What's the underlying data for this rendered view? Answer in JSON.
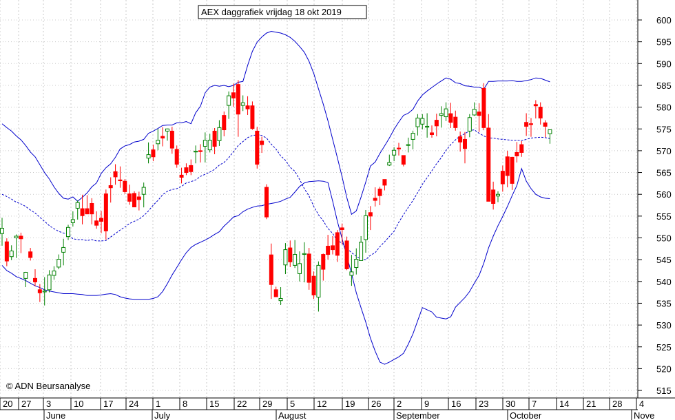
{
  "chart_data": {
    "type": "candlestick",
    "title": "AEX daggrafiek vrijdag 18 okt 2019",
    "watermark": "© ADN Beursanalyse",
    "ylim": [
      513,
      605
    ],
    "yticks": [
      515,
      520,
      525,
      530,
      535,
      540,
      545,
      550,
      555,
      560,
      565,
      570,
      575,
      580,
      585,
      590,
      595,
      600
    ],
    "x_day_labels": [
      "20",
      "27",
      "3",
      "10",
      "17",
      "24",
      "1",
      "8",
      "15",
      "22",
      "29",
      "5",
      "12",
      "19",
      "26",
      "2",
      "9",
      "16",
      "23",
      "30",
      "7",
      "14",
      "21",
      "28",
      "4"
    ],
    "x_month_labels": [
      "June",
      "July",
      "August",
      "September",
      "October",
      "Nove"
    ],
    "grid": true,
    "colors": {
      "up": "#008000",
      "down": "#ff0000",
      "band": "#0000cc",
      "frame": "#000000"
    },
    "candles": [
      [
        551.0,
        554.6,
        548.2,
        552.2
      ],
      [
        549.1,
        549.9,
        543.5,
        544.7
      ],
      [
        545.7,
        548.3,
        544.9,
        547.0
      ],
      [
        550.0,
        550.8,
        545.4,
        550.4
      ],
      [
        550.4,
        551.2,
        546.5,
        549.8
      ],
      [
        540.7,
        542.2,
        538.7,
        542.1
      ],
      [
        546.8,
        547.7,
        544.8,
        545.5
      ],
      [
        540.7,
        542.8,
        538.9,
        539.9
      ],
      [
        538.1,
        539.4,
        535.3,
        537.4
      ],
      [
        537.6,
        541.0,
        534.5,
        537.8
      ],
      [
        538.1,
        542.6,
        537.5,
        541.5
      ],
      [
        541.4,
        543.5,
        540.4,
        542.4
      ],
      [
        543.3,
        546.2,
        542.8,
        545.1
      ],
      [
        546.7,
        549.8,
        543.7,
        547.8
      ],
      [
        550.3,
        553.0,
        549.5,
        552.4
      ],
      [
        553.5,
        556.1,
        552.6,
        554.2
      ],
      [
        556.8,
        558.6,
        554.2,
        558.1
      ],
      [
        556.7,
        559.9,
        553.1,
        555.1
      ],
      [
        556.7,
        559.8,
        555.5,
        555.5
      ],
      [
        557.9,
        559.1,
        553.1,
        555.5
      ],
      [
        553.9,
        556.1,
        552.1,
        552.9
      ],
      [
        554.5,
        556.2,
        551.1,
        553.8
      ],
      [
        560.1,
        561.1,
        549.6,
        551.6
      ],
      [
        562.0,
        563.9,
        558.1,
        561.5
      ],
      [
        565.2,
        566.9,
        562.2,
        564.0
      ],
      [
        563.3,
        566.4,
        561.5,
        563.2
      ],
      [
        563.0,
        563.5,
        560.1,
        560.6
      ],
      [
        560.1,
        562.2,
        557.6,
        558.4
      ],
      [
        560.2,
        560.7,
        557.7,
        557.1
      ],
      [
        559.4,
        560.6,
        556.3,
        558.8
      ],
      [
        560.0,
        562.7,
        557.0,
        561.6
      ],
      [
        568.3,
        571.9,
        567.1,
        569.1
      ],
      [
        570.2,
        571.4,
        567.6,
        568.6
      ],
      [
        571.6,
        575.0,
        570.1,
        572.4
      ],
      [
        573.3,
        575.4,
        571.0,
        572.9
      ],
      [
        574.5,
        575.1,
        572.3,
        575.0
      ],
      [
        574.5,
        575.5,
        569.3,
        570.6
      ],
      [
        570.3,
        571.2,
        566.1,
        566.9
      ],
      [
        564.4,
        566.1,
        562.5,
        563.9
      ],
      [
        566.1,
        567.1,
        564.4,
        565.0
      ],
      [
        566.6,
        568.0,
        564.4,
        565.2
      ],
      [
        569.9,
        571.2,
        567.1,
        569.9
      ],
      [
        570.0,
        571.5,
        567.3,
        569.8
      ],
      [
        571.0,
        574.2,
        567.3,
        572.4
      ],
      [
        570.2,
        573.9,
        569.6,
        572.4
      ],
      [
        574.5,
        575.2,
        569.2,
        571.0
      ],
      [
        572.3,
        577.0,
        571.1,
        575.3
      ],
      [
        578.1,
        579.0,
        573.3,
        574.8
      ],
      [
        580.4,
        583.6,
        577.3,
        582.6
      ],
      [
        583.3,
        585.4,
        580.1,
        582.1
      ],
      [
        585.2,
        586.2,
        573.2,
        578.4
      ],
      [
        580.4,
        582.7,
        579.1,
        581.0
      ],
      [
        580.3,
        582.5,
        578.2,
        579.6
      ],
      [
        580.3,
        581.3,
        574.8,
        575.1
      ],
      [
        574.5,
        575.5,
        565.9,
        566.9
      ],
      [
        572.2,
        573.2,
        569.5,
        571.4
      ],
      [
        561.6,
        562.3,
        554.3,
        554.8
      ],
      [
        546.1,
        548.7,
        536.0,
        539.3
      ],
      [
        538.1,
        538.8,
        536.5,
        536.5
      ],
      [
        535.6,
        538.7,
        534.6,
        536.1
      ],
      [
        543.8,
        548.8,
        541.7,
        547.3
      ],
      [
        547.7,
        549.4,
        543.3,
        544.5
      ],
      [
        543.7,
        549.5,
        543.1,
        546.2
      ],
      [
        541.8,
        546.9,
        540.0,
        544.1
      ],
      [
        546.2,
        549.0,
        539.8,
        546.4
      ],
      [
        546.3,
        547.7,
        538.1,
        539.8
      ],
      [
        541.2,
        542.3,
        536.0,
        536.9
      ],
      [
        536.4,
        544.6,
        533.1,
        543.7
      ],
      [
        546.2,
        546.4,
        540.2,
        542.8
      ],
      [
        548.1,
        550.7,
        545.0,
        546.2
      ],
      [
        548.2,
        550.4,
        546.2,
        547.3
      ],
      [
        551.2,
        551.8,
        544.5,
        546.0
      ],
      [
        552.3,
        553.3,
        548.5,
        551.9
      ],
      [
        549.3,
        550.3,
        542.6,
        542.9
      ],
      [
        541.4,
        546.1,
        539.0,
        542.2
      ],
      [
        543.2,
        547.6,
        541.6,
        545.1
      ],
      [
        544.8,
        550.4,
        544.8,
        549.0
      ],
      [
        549.6,
        556.4,
        546.6,
        555.1
      ],
      [
        555.8,
        557.3,
        551.8,
        555.0
      ],
      [
        559.1,
        561.6,
        557.2,
        558.6
      ],
      [
        561.2,
        561.7,
        557.5,
        559.7
      ],
      [
        563.4,
        563.4,
        560.9,
        562.1
      ],
      [
        566.7,
        569.1,
        566.5,
        567.3
      ],
      [
        569.0,
        570.8,
        567.6,
        570.1
      ],
      [
        570.6,
        571.8,
        568.9,
        570.5
      ],
      [
        568.9,
        568.9,
        566.4,
        566.9
      ],
      [
        571.3,
        573.0,
        569.6,
        571.4
      ],
      [
        572.6,
        574.6,
        570.3,
        574.0
      ],
      [
        575.5,
        578.4,
        573.5,
        577.5
      ],
      [
        576.1,
        578.4,
        574.9,
        577.4
      ],
      [
        575.4,
        578.6,
        573.0,
        575.6
      ],
      [
        574.1,
        575.8,
        573.0,
        573.7
      ],
      [
        577.0,
        578.5,
        573.3,
        575.7
      ],
      [
        578.1,
        580.2,
        575.3,
        578.5
      ],
      [
        577.8,
        581.1,
        576.8,
        579.6
      ],
      [
        578.5,
        581.0,
        575.2,
        576.5
      ],
      [
        577.7,
        579.2,
        574.6,
        575.3
      ],
      [
        573.2,
        574.4,
        569.8,
        572.0
      ],
      [
        572.6,
        574.3,
        567.1,
        570.5
      ],
      [
        574.5,
        578.4,
        573.1,
        577.6
      ],
      [
        578.2,
        581.1,
        578.0,
        579.5
      ],
      [
        578.9,
        580.9,
        574.3,
        578.1
      ],
      [
        584.3,
        585.5,
        574.7,
        575.3
      ],
      [
        575.2,
        578.4,
        558.6,
        558.4
      ],
      [
        561.0,
        562.9,
        556.5,
        557.9
      ],
      [
        559.6,
        560.7,
        558.2,
        560.0
      ],
      [
        565.3,
        566.6,
        560.6,
        562.4
      ],
      [
        568.6,
        570.0,
        561.6,
        564.3
      ],
      [
        568.5,
        568.6,
        561.0,
        562.5
      ],
      [
        569.6,
        572.0,
        567.3,
        568.8
      ],
      [
        571.4,
        572.2,
        568.6,
        569.6
      ],
      [
        576.5,
        578.6,
        573.4,
        575.6
      ],
      [
        576.2,
        577.5,
        573.2,
        576.0
      ],
      [
        580.6,
        581.6,
        577.4,
        580.3
      ],
      [
        580.0,
        581.1,
        576.0,
        577.5
      ],
      [
        576.4,
        577.0,
        573.1,
        575.6
      ],
      [
        573.9,
        574.6,
        571.6,
        574.8
      ]
    ],
    "upper_band": [
      576.2,
      575.3,
      574.5,
      573.4,
      572.5,
      571.2,
      569.7,
      568.6,
      566.8,
      565.0,
      563.5,
      561.7,
      560.2,
      559.1,
      558.9,
      559.4,
      558.4,
      559.3,
      560.3,
      561.7,
      562.6,
      564.8,
      566.1,
      567.0,
      568.5,
      570.4,
      571.1,
      571.4,
      572.0,
      572.2,
      572.6,
      574.0,
      574.5,
      575.1,
      575.8,
      575.9,
      575.9,
      576.4,
      576.4,
      576.7,
      576.2,
      578.7,
      580.2,
      583.3,
      584.6,
      585.0,
      584.8,
      585.0,
      584.7,
      585.0,
      585.7,
      585.9,
      589.6,
      592.8,
      594.9,
      596.1,
      597.0,
      597.4,
      597.2,
      597.0,
      596.6,
      596.0,
      595.1,
      593.9,
      592.6,
      590.5,
      587.7,
      584.2,
      580.7,
      576.9,
      572.6,
      568.4,
      564.0,
      559.2,
      555.4,
      556.2,
      559.3,
      562.8,
      566.5,
      567.4,
      569.4,
      571.1,
      572.9,
      574.9,
      576.6,
      578.1,
      578.6,
      579.5,
      581.4,
      582.8,
      583.7,
      584.5,
      585.3,
      586.0,
      586.7,
      586.4,
      585.6,
      585.4,
      584.9,
      584.8,
      584.6,
      584.6,
      584.1,
      585.9,
      585.9,
      586.0,
      586.0,
      586.0,
      586.1,
      585.9,
      585.9,
      586.1,
      586.3,
      586.7,
      586.6,
      586.2,
      585.8
    ],
    "middle_band": [
      560.0,
      559.5,
      558.9,
      558.2,
      557.8,
      557.2,
      556.4,
      555.7,
      554.7,
      553.8,
      552.8,
      552.1,
      551.5,
      551.1,
      550.9,
      549.8,
      549.6,
      549.6,
      549.4,
      549.6,
      549.3,
      549.3,
      549.4,
      550.2,
      551.0,
      551.8,
      552.5,
      553.3,
      553.8,
      554.3,
      555.1,
      556.2,
      557.5,
      558.6,
      559.9,
      560.7,
      561.1,
      561.3,
      561.8,
      562.6,
      562.9,
      563.3,
      564.1,
      564.6,
      565.1,
      565.7,
      566.7,
      567.3,
      568.4,
      569.8,
      571.2,
      572.1,
      573.0,
      573.5,
      573.6,
      573.5,
      572.9,
      571.5,
      570.4,
      568.8,
      567.8,
      566.2,
      565.3,
      563.4,
      561.3,
      559.6,
      557.2,
      555.3,
      553.9,
      552.2,
      551.0,
      549.4,
      548.8,
      547.6,
      546.6,
      545.8,
      545.1,
      545.0,
      546.0,
      546.6,
      548.0,
      549.1,
      550.3,
      551.5,
      553.6,
      555.3,
      557.0,
      558.6,
      560.4,
      562.3,
      563.8,
      565.4,
      567.0,
      568.4,
      570.1,
      571.4,
      572.5,
      573.4,
      573.9,
      574.6,
      574.8,
      574.0,
      573.4,
      572.9,
      572.9,
      572.7,
      572.6,
      572.5,
      572.4,
      572.4,
      572.3,
      572.6,
      572.9,
      573.0,
      573.1,
      573.0,
      572.8
    ],
    "lower_band": [
      543.7,
      542.5,
      541.9,
      541.1,
      540.7,
      540.2,
      539.6,
      539.0,
      538.6,
      538.1,
      537.8,
      537.6,
      537.4,
      537.2,
      537.2,
      537.2,
      537.1,
      537.0,
      536.8,
      536.8,
      536.8,
      536.9,
      537.1,
      537.2,
      537.0,
      536.5,
      536.2,
      536.0,
      535.9,
      535.9,
      535.9,
      535.9,
      536.1,
      536.5,
      537.7,
      539.5,
      541.5,
      543.2,
      545.0,
      546.6,
      547.8,
      548.5,
      549.0,
      549.5,
      550.1,
      550.8,
      551.4,
      552.7,
      553.7,
      554.8,
      555.1,
      556.0,
      556.6,
      557.0,
      557.3,
      557.4,
      557.7,
      557.9,
      558.1,
      558.4,
      558.9,
      559.3,
      560.5,
      561.8,
      562.6,
      562.9,
      563.0,
      563.1,
      563.0,
      562.7,
      558.4,
      553.8,
      549.8,
      545.8,
      541.8,
      537.4,
      534.0,
      530.7,
      527.0,
      524.0,
      521.5,
      521.0,
      521.5,
      522.1,
      522.7,
      523.5,
      525.6,
      528.0,
      531.0,
      534.0,
      533.5,
      533.0,
      531.8,
      531.6,
      531.4,
      531.9,
      534.1,
      535.2,
      536.3,
      537.7,
      539.6,
      541.4,
      544.2,
      547.7,
      550.4,
      552.8,
      554.9,
      557.2,
      559.7,
      562.0,
      565.9,
      563.0,
      561.3,
      560.0,
      559.4,
      559.1,
      559.0
    ]
  }
}
